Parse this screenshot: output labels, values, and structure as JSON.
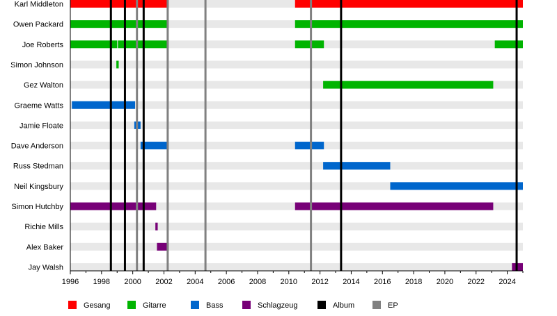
{
  "chart_data": {
    "type": "timeline",
    "xlim": [
      1996,
      2025
    ],
    "x_ticks": [
      1996,
      1998,
      2000,
      2002,
      2004,
      2006,
      2008,
      2010,
      2012,
      2014,
      2016,
      2018,
      2020,
      2022,
      2024
    ],
    "grid": false,
    "legend_placement": "bottom",
    "roles": {
      "vocals": {
        "label": "Gesang",
        "color": "#ff0000"
      },
      "guitar": {
        "label": "Gitarre",
        "color": "#00b400"
      },
      "bass": {
        "label": "Bass",
        "color": "#0066cc"
      },
      "drums": {
        "label": "Schlagzeug",
        "color": "#770077"
      },
      "album": {
        "label": "Album",
        "color": "#000000"
      },
      "ep": {
        "label": "EP",
        "color": "#808080"
      }
    },
    "legend_order": [
      "vocals",
      "guitar",
      "bass",
      "drums",
      "album",
      "ep"
    ],
    "members": [
      {
        "name": "Karl Middleton",
        "spans": [
          {
            "role": "vocals",
            "start": 1996,
            "end": 2002.3
          },
          {
            "role": "vocals",
            "start": 2010.4,
            "end": 2025
          }
        ]
      },
      {
        "name": "Owen Packard",
        "spans": [
          {
            "role": "guitar",
            "start": 1996,
            "end": 2002.3
          },
          {
            "role": "guitar",
            "start": 2010.4,
            "end": 2025
          }
        ]
      },
      {
        "name": "Joe Roberts",
        "spans": [
          {
            "role": "guitar",
            "start": 1996,
            "end": 1999.0
          },
          {
            "role": "guitar",
            "start": 1999.05,
            "end": 2002.3
          },
          {
            "role": "guitar",
            "start": 2010.4,
            "end": 2012.25
          },
          {
            "role": "guitar",
            "start": 2023.2,
            "end": 2025
          }
        ]
      },
      {
        "name": "Simon Johnson",
        "spans": [
          {
            "role": "guitar",
            "start": 1998.95,
            "end": 1999.1
          }
        ]
      },
      {
        "name": "Gez Walton",
        "spans": [
          {
            "role": "guitar",
            "start": 2012.2,
            "end": 2023.1
          }
        ]
      },
      {
        "name": "Graeme Watts",
        "spans": [
          {
            "role": "bass",
            "start": 1996.1,
            "end": 2000.15
          }
        ]
      },
      {
        "name": "Jamie Floate",
        "spans": [
          {
            "role": "bass",
            "start": 2000.1,
            "end": 2000.5
          }
        ]
      },
      {
        "name": "Dave Anderson",
        "spans": [
          {
            "role": "bass",
            "start": 2000.5,
            "end": 2002.3
          },
          {
            "role": "bass",
            "start": 2010.4,
            "end": 2012.25
          }
        ]
      },
      {
        "name": "Russ Stedman",
        "spans": [
          {
            "role": "bass",
            "start": 2012.2,
            "end": 2016.5
          }
        ]
      },
      {
        "name": "Neil Kingsbury",
        "spans": [
          {
            "role": "bass",
            "start": 2016.5,
            "end": 2025
          }
        ]
      },
      {
        "name": "Simon Hutchby",
        "spans": [
          {
            "role": "drums",
            "start": 1996,
            "end": 2001.5
          },
          {
            "role": "drums",
            "start": 2010.4,
            "end": 2023.1
          }
        ]
      },
      {
        "name": "Richie Mills",
        "spans": [
          {
            "role": "drums",
            "start": 2001.45,
            "end": 2001.6
          }
        ]
      },
      {
        "name": "Alex Baker",
        "spans": [
          {
            "role": "drums",
            "start": 2001.55,
            "end": 2002.3
          }
        ]
      },
      {
        "name": "Jay Walsh",
        "spans": [
          {
            "role": "drums",
            "start": 2024.3,
            "end": 2025
          }
        ]
      }
    ],
    "releases": [
      {
        "type": "album",
        "year": 1998.6
      },
      {
        "type": "album",
        "year": 1999.5
      },
      {
        "type": "album",
        "year": 2000.7
      },
      {
        "type": "album",
        "year": 2013.35
      },
      {
        "type": "album",
        "year": 2024.6
      },
      {
        "type": "ep",
        "year": 2000.27
      },
      {
        "type": "ep",
        "year": 2002.24
      },
      {
        "type": "ep",
        "year": 2004.66
      },
      {
        "type": "ep",
        "year": 2011.42
      }
    ]
  }
}
